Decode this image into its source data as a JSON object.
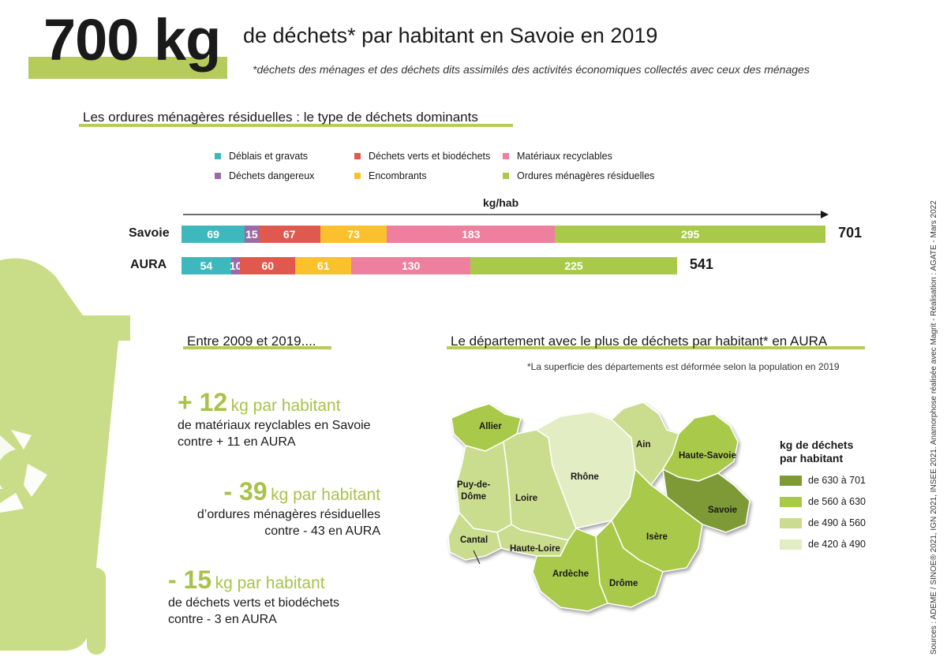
{
  "header": {
    "big_number": "700 kg",
    "headline": "de déchets* par habitant en Savoie en 2019",
    "footnote": "*déchets des ménages et des déchets dits assimilés des activités économiques collectés avec ceux des ménages"
  },
  "omr_section": {
    "title": "Les ordures ménagères résiduelles  : le type de déchets dominants"
  },
  "colors": {
    "accent_green": "#b5cc5c",
    "deblais": "#3fb8bd",
    "dangereux": "#9b6aa8",
    "verts": "#e0594f",
    "encombrants": "#fbc02d",
    "recyclables": "#ee7f9f",
    "omr": "#a9c94a"
  },
  "chart_data": {
    "type": "bar",
    "orientation": "horizontal",
    "stacked": true,
    "xlabel": "kg/hab",
    "categories": [
      "Savoie",
      "AURA"
    ],
    "series": [
      {
        "name": "Déblais et gravats",
        "values": [
          69,
          54
        ],
        "color": "#3fb8bd"
      },
      {
        "name": "Déchets dangereux",
        "values": [
          15,
          10
        ],
        "color": "#9b6aa8"
      },
      {
        "name": "Déchets verts et biodéchets",
        "values": [
          67,
          60
        ],
        "color": "#e0594f"
      },
      {
        "name": "Encombrants",
        "values": [
          73,
          61
        ],
        "color": "#fbc02d"
      },
      {
        "name": "Matériaux recyclables",
        "values": [
          183,
          130
        ],
        "color": "#ee7f9f"
      },
      {
        "name": "Ordures ménagères résiduelles",
        "values": [
          295,
          225
        ],
        "color": "#a9c94a"
      }
    ],
    "totals": [
      "701",
      "541"
    ],
    "xlim": [
      0,
      701
    ],
    "legend_position": "top"
  },
  "evolution": {
    "title": "Entre 2009 et 2019....",
    "stats": [
      {
        "value": "+ 12",
        "unit": "kg par habitant",
        "line1": "de matériaux reyclables en Savoie",
        "line2": "contre + 11 en AURA"
      },
      {
        "value": "- 39",
        "unit": "kg par habitant",
        "line1": "d’ordures ménagères résiduelles",
        "line2": "contre - 43 en AURA"
      },
      {
        "value": "- 15",
        "unit": "kg par habitant",
        "line1": "de déchets verts et biodéchets",
        "line2": "contre - 3 en AURA"
      }
    ]
  },
  "map_section": {
    "title": "Le département avec le plus de déchets par habitant* en AURA",
    "footnote": "*La superficie des départements est déformée selon la population en 2019",
    "departments": [
      {
        "name": "Allier",
        "class": "de 560 à 630"
      },
      {
        "name": "Puy-de-",
        "name2": "Dôme",
        "class": "de 490 à 560"
      },
      {
        "name": "Loire",
        "class": "de 490 à 560"
      },
      {
        "name": "Rhône",
        "class": "de 420 à 490"
      },
      {
        "name": "Ain",
        "class": "de 490 à 560"
      },
      {
        "name": "Haute-Savoie",
        "class": "de 560 à 630"
      },
      {
        "name": "Savoie",
        "class": "de 630 à 701"
      },
      {
        "name": "Isère",
        "class": "de 560 à 630"
      },
      {
        "name": "Drôme",
        "class": "de 560 à 630"
      },
      {
        "name": "Ardèche",
        "class": "de 560 à 630"
      },
      {
        "name": "Haute-Loire",
        "class": "de 490 à 560"
      },
      {
        "name": "Cantal",
        "class": "de 490 à 560"
      }
    ],
    "legend": {
      "title1": "kg de déchets",
      "title2": "par habitant",
      "items": [
        {
          "label": "de 630 à 701",
          "color": "#7e9a36"
        },
        {
          "label": "de 560 à 630",
          "color": "#a9c94a"
        },
        {
          "label": "de 490 à 560",
          "color": "#cadd8e"
        },
        {
          "label": "de 420 à 490",
          "color": "#e3edc3"
        }
      ]
    }
  },
  "sources": "Sources : ADEME / SINOE® 2021, IGN 2021, INSEE 2021. Anamorphose réalisée avec Magrit  - Réalisation : AGATE - Mars 2022"
}
